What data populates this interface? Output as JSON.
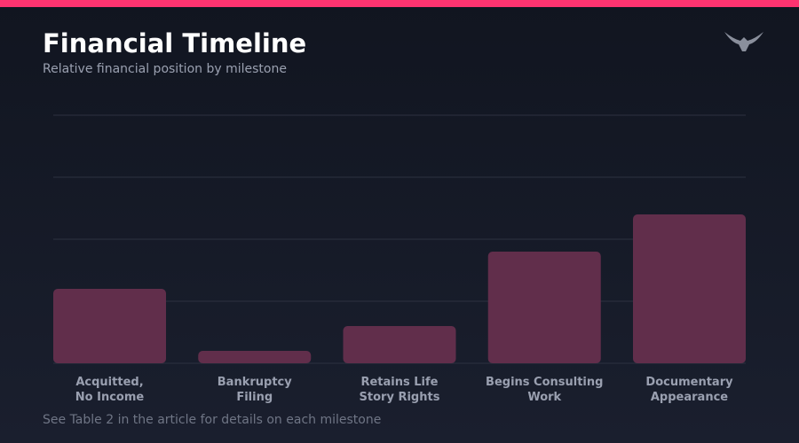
{
  "chart_data": {
    "type": "bar",
    "title": "Financial Timeline",
    "subtitle": "Relative financial position by milestone",
    "categories": [
      "Acquitted,\nNo Income",
      "Bankruptcy\nFiling",
      "Retains Life\nStory Rights",
      "Begins Consulting\nWork",
      "Documentary\nAppearance"
    ],
    "values": [
      1.2,
      0.2,
      0.6,
      1.8,
      2.4
    ],
    "color": "#612e4b",
    "ylim": [
      0,
      4
    ],
    "yticks": [
      0,
      1,
      2,
      3,
      4
    ],
    "grid": true,
    "note": "See Table 2 in the article for details on each milestone"
  }
}
